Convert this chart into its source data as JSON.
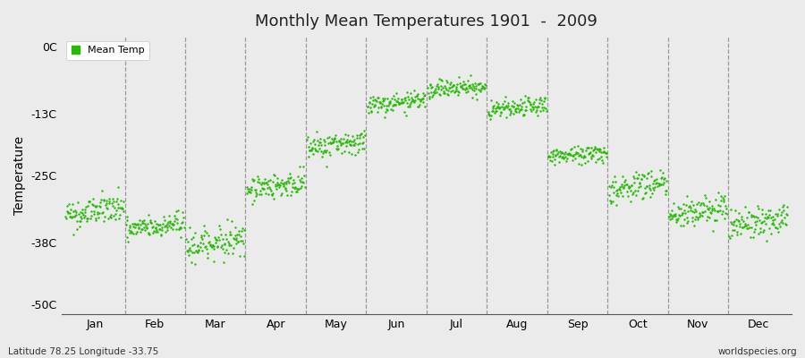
{
  "title": "Monthly Mean Temperatures 1901  -  2009",
  "ylabel": "Temperature",
  "subtitle_left": "Latitude 78.25 Longitude -33.75",
  "subtitle_right": "worldspecies.org",
  "legend_label": "Mean Temp",
  "dot_color": "#22bb00",
  "bg_color": "#ebebeb",
  "fig_bg_color": "#ebebeb",
  "yticks": [
    0,
    -13,
    -25,
    -38,
    -50
  ],
  "ytick_labels": [
    "0C",
    "-13C",
    "-25C",
    "-38C",
    "-50C"
  ],
  "ylim": [
    -52,
    2
  ],
  "months": [
    "Jan",
    "Feb",
    "Mar",
    "Apr",
    "May",
    "Jun",
    "Jul",
    "Aug",
    "Sep",
    "Oct",
    "Nov",
    "Dec"
  ],
  "month_means": [
    -32,
    -35,
    -38,
    -27,
    -19,
    -11,
    -8,
    -12,
    -21,
    -27,
    -32,
    -34
  ],
  "month_spreads": [
    2.5,
    2.0,
    2.5,
    2.0,
    2.0,
    1.5,
    1.5,
    1.5,
    1.5,
    2.5,
    2.5,
    2.5
  ],
  "n_years": 109,
  "marker_size": 3
}
